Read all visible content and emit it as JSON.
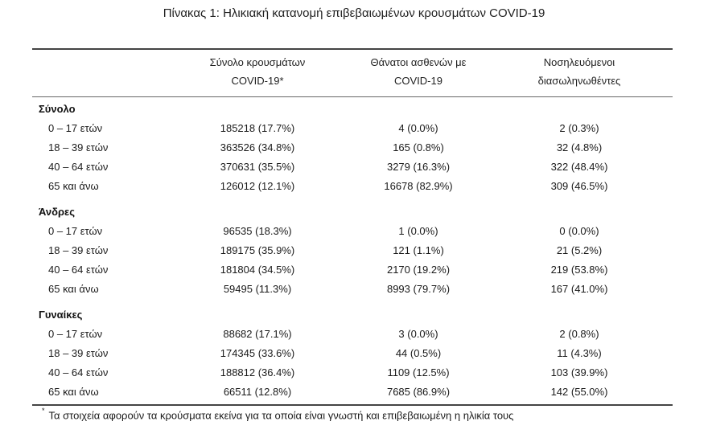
{
  "title": "Πίνακας 1: Ηλικιακή κατανομή επιβεβαιωμένων κρουσμάτων COVID-19",
  "columns": [
    {
      "line1": "Σύνολο κρουσμάτων",
      "line2": "COVID-19*"
    },
    {
      "line1": "Θάνατοι ασθενών με",
      "line2": "COVID-19"
    },
    {
      "line1": "Νοσηλευόμενοι",
      "line2": "διασωληνωθέντες"
    }
  ],
  "groups": [
    {
      "name": "Σύνολο",
      "rows": [
        {
          "age": "0 – 17 ετών",
          "cases": "185218 (17.7%)",
          "deaths": "4 (0.0%)",
          "intubated": "2 (0.3%)"
        },
        {
          "age": "18 – 39 ετών",
          "cases": "363526 (34.8%)",
          "deaths": "165 (0.8%)",
          "intubated": "32 (4.8%)"
        },
        {
          "age": "40 – 64 ετών",
          "cases": "370631 (35.5%)",
          "deaths": "3279 (16.3%)",
          "intubated": "322 (48.4%)"
        },
        {
          "age": "65 και άνω",
          "cases": "126012 (12.1%)",
          "deaths": "16678 (82.9%)",
          "intubated": "309 (46.5%)"
        }
      ]
    },
    {
      "name": "Άνδρες",
      "rows": [
        {
          "age": "0 – 17 ετών",
          "cases": "96535 (18.3%)",
          "deaths": "1 (0.0%)",
          "intubated": "0 (0.0%)"
        },
        {
          "age": "18 – 39 ετών",
          "cases": "189175 (35.9%)",
          "deaths": "121 (1.1%)",
          "intubated": "21 (5.2%)"
        },
        {
          "age": "40 – 64 ετών",
          "cases": "181804 (34.5%)",
          "deaths": "2170 (19.2%)",
          "intubated": "219 (53.8%)"
        },
        {
          "age": "65 και άνω",
          "cases": "59495 (11.3%)",
          "deaths": "8993 (79.7%)",
          "intubated": "167 (41.0%)"
        }
      ]
    },
    {
      "name": "Γυναίκες",
      "rows": [
        {
          "age": "0 – 17 ετών",
          "cases": "88682 (17.1%)",
          "deaths": "3 (0.0%)",
          "intubated": "2 (0.8%)"
        },
        {
          "age": "18 – 39 ετών",
          "cases": "174345 (33.6%)",
          "deaths": "44 (0.5%)",
          "intubated": "11 (4.3%)"
        },
        {
          "age": "40 – 64 ετών",
          "cases": "188812 (36.4%)",
          "deaths": "1109 (12.5%)",
          "intubated": "103 (39.9%)"
        },
        {
          "age": "65 και άνω",
          "cases": "66511 (12.8%)",
          "deaths": "7685 (86.9%)",
          "intubated": "142 (55.0%)"
        }
      ]
    }
  ],
  "footnote": {
    "marker": "*",
    "text": "Τα στοιχεία αφορούν τα κρούσματα εκείνα για τα οποία είναι γνωστή και επιβεβαιωμένη η ηλικία τους"
  }
}
